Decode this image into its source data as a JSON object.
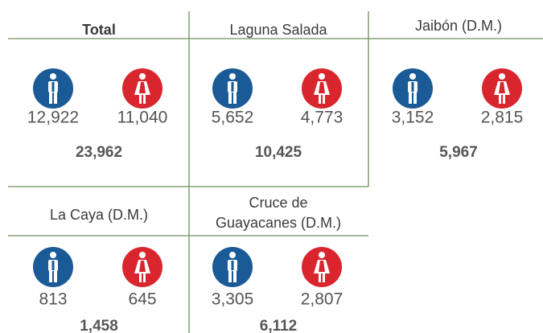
{
  "panels": [
    {
      "title": [
        "Total"
      ],
      "male": "12,922",
      "female": "11,040",
      "total": "23,962"
    },
    {
      "title": [
        "Laguna Salada"
      ],
      "male": "5,652",
      "female": "4,773",
      "total": "10,425"
    },
    {
      "title": [
        "Jaibón (D.M.)"
      ],
      "male": "3,152",
      "female": "2,815",
      "total": "5,967"
    },
    {
      "title": [
        "La Caya (D.M.)"
      ],
      "male": "813",
      "female": "645",
      "total": "1,458"
    },
    {
      "title": [
        "Cruce de",
        "Guayacanes (D.M.)"
      ],
      "male": "3,305",
      "female": "2,807",
      "total": "6,112"
    }
  ]
}
